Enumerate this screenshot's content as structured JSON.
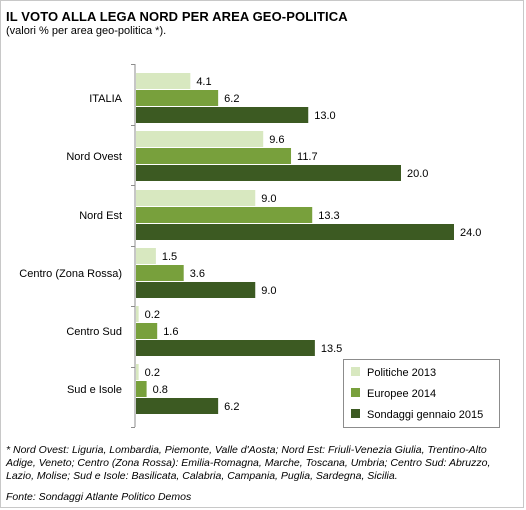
{
  "title": "IL VOTO ALLA LEGA NORD PER AREA GEO-POLITICA",
  "subtitle": "(valori % per area geo-politica *).",
  "footnote": "* Nord Ovest: Liguria, Lombardia, Piemonte, Valle d'Aosta; Nord Est: Friuli-Venezia Giulia, Trentino-Alto Adige, Veneto; Centro (Zona Rossa): Emilia-Romagna, Marche, Toscana, Umbria; Centro Sud: Abruzzo, Lazio, Molise; Sud e Isole: Basilicata, Calabria, Campania, Puglia, Sardegna, Sicilia.",
  "source": "Fonte: Sondaggi Atlante Politico Demos",
  "chart_data": {
    "type": "bar",
    "orientation": "horizontal",
    "categories": [
      "ITALIA",
      "Nord Ovest",
      "Nord Est",
      "Centro (Zona Rossa)",
      "Centro Sud",
      "Sud e Isole"
    ],
    "series": [
      {
        "name": "Politiche 2013",
        "color": "#d8e8c0",
        "values": [
          4.1,
          9.6,
          9.0,
          1.5,
          0.2,
          0.2
        ]
      },
      {
        "name": "Europee 2014",
        "color": "#78a03c",
        "values": [
          6.2,
          11.7,
          13.3,
          3.6,
          1.6,
          0.8
        ]
      },
      {
        "name": "Sondaggi gennaio 2015",
        "color": "#3c5a22",
        "values": [
          13.0,
          20.0,
          24.0,
          9.0,
          13.5,
          6.2
        ]
      }
    ],
    "legend_position": "bottom-right",
    "grid": false,
    "xlim": [
      0,
      26
    ]
  }
}
